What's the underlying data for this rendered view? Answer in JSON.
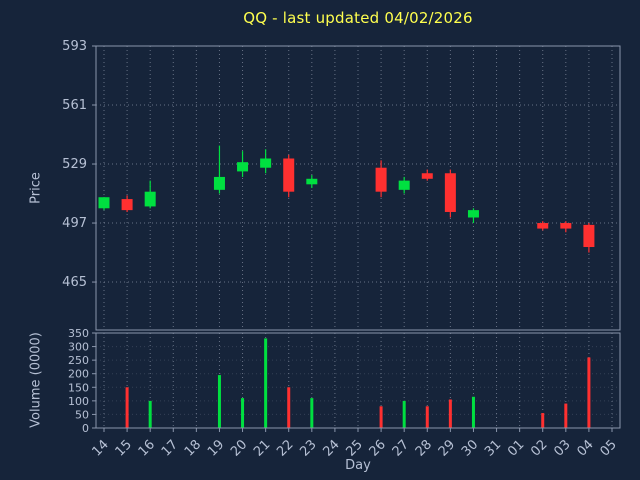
{
  "chart_data": {
    "type": "candlestick",
    "title": "QQ - last updated 04/02/2026",
    "xlabel": "Day",
    "grid": true,
    "legend": null,
    "price_axis": {
      "label": "Price",
      "ticks": [
        465,
        497,
        529,
        561,
        593
      ],
      "min": 439,
      "max": 593
    },
    "volume_axis": {
      "label": "Volume (0000)",
      "ticks": [
        0,
        50,
        100,
        150,
        200,
        250,
        300,
        350
      ],
      "min": 0,
      "max": 350
    },
    "x_ticklabels": [
      "14",
      "15",
      "16",
      "17",
      "18",
      "19",
      "20",
      "21",
      "22",
      "23",
      "24",
      "25",
      "26",
      "27",
      "28",
      "29",
      "30",
      "31",
      "01",
      "02",
      "03",
      "04",
      "05"
    ],
    "colors": {
      "background": "#16243a",
      "up": "#00e040",
      "down": "#ff3030",
      "grid": "#8a93a6",
      "border": "#8a96ac",
      "title": "#ffff4f",
      "text": "#b6c0d4"
    },
    "candles": [
      {
        "day": "14",
        "open": 505,
        "high": 511,
        "low": 504,
        "close": 511,
        "volume": 0
      },
      {
        "day": "15",
        "open": 510,
        "high": 512,
        "low": 503,
        "close": 504,
        "volume": 150
      },
      {
        "day": "16",
        "open": 506,
        "high": 520,
        "low": 505,
        "close": 514,
        "volume": 100
      },
      {
        "day": "19",
        "open": 515,
        "high": 539,
        "low": 513,
        "close": 522,
        "volume": 195
      },
      {
        "day": "20",
        "open": 525,
        "high": 536,
        "low": 522,
        "close": 530,
        "volume": 110
      },
      {
        "day": "21",
        "open": 527,
        "high": 537,
        "low": 524,
        "close": 532,
        "volume": 330
      },
      {
        "day": "22",
        "open": 532,
        "high": 534,
        "low": 511,
        "close": 514,
        "volume": 150
      },
      {
        "day": "23",
        "open": 518,
        "high": 523,
        "low": 516,
        "close": 521,
        "volume": 110
      },
      {
        "day": "26",
        "open": 527,
        "high": 531,
        "low": 511,
        "close": 514,
        "volume": 80
      },
      {
        "day": "27",
        "open": 515,
        "high": 522,
        "low": 513,
        "close": 520,
        "volume": 100
      },
      {
        "day": "28",
        "open": 524,
        "high": 526,
        "low": 520,
        "close": 521,
        "volume": 80
      },
      {
        "day": "29",
        "open": 524,
        "high": 526,
        "low": 500,
        "close": 503,
        "volume": 105
      },
      {
        "day": "30",
        "open": 500,
        "high": 505,
        "low": 497,
        "close": 504,
        "volume": 115
      },
      {
        "day": "02",
        "open": 497,
        "high": 498,
        "low": 493,
        "close": 494,
        "volume": 55
      },
      {
        "day": "03",
        "open": 497,
        "high": 498,
        "low": 492,
        "close": 494,
        "volume": 90
      },
      {
        "day": "04",
        "open": 496,
        "high": 497,
        "low": 481,
        "close": 484,
        "volume": 260
      }
    ]
  }
}
